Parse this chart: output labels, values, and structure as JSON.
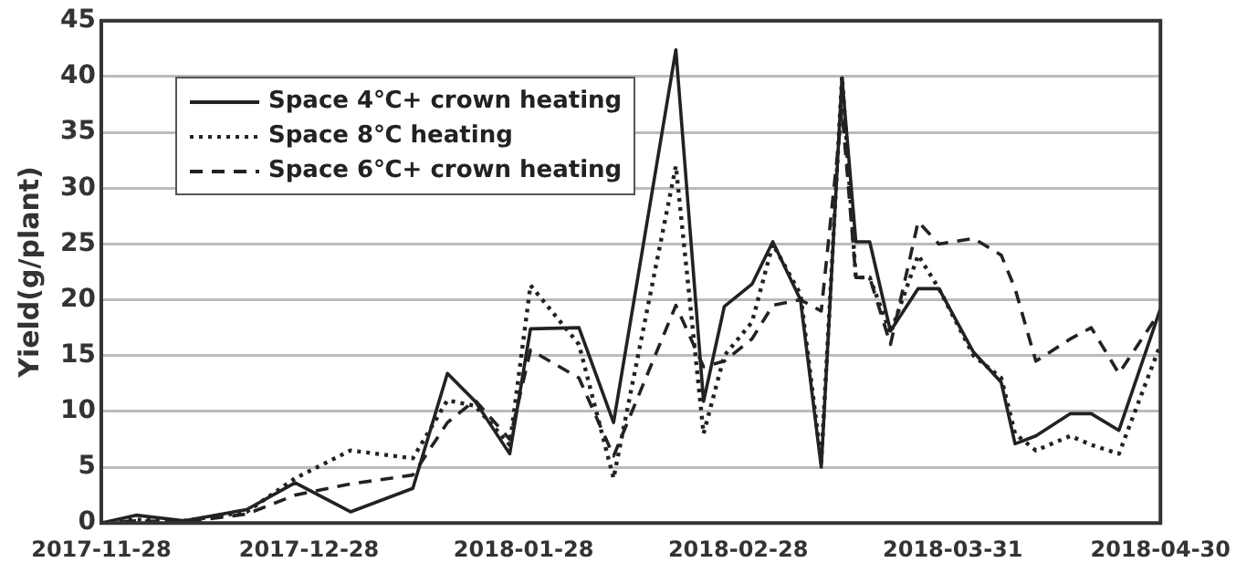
{
  "chart_data": {
    "type": "line",
    "ylabel": "Yield(g/plant)",
    "x": [
      "2017-11-28",
      "2017-12-03",
      "2017-12-10",
      "2017-12-19",
      "2017-12-26",
      "2018-01-03",
      "2018-01-12",
      "2018-01-17",
      "2018-01-21",
      "2018-01-26",
      "2018-01-29",
      "2018-02-05",
      "2018-02-10",
      "2018-02-19",
      "2018-02-23",
      "2018-02-26",
      "2018-03-02",
      "2018-03-05",
      "2018-03-09",
      "2018-03-12",
      "2018-03-15",
      "2018-03-17",
      "2018-03-19",
      "2018-03-22",
      "2018-03-26",
      "2018-03-29",
      "2018-04-03",
      "2018-04-07",
      "2018-04-09",
      "2018-04-12",
      "2018-04-17",
      "2018-04-20",
      "2018-04-24",
      "2018-04-30"
    ],
    "series": [
      {
        "name": "Space 4℃+ crown heating",
        "color": "#222222",
        "line_style": "solid",
        "values": [
          0,
          0.7,
          0.2,
          1.2,
          3.6,
          1,
          3.1,
          13.4,
          10.9,
          6.2,
          17.4,
          17.5,
          9,
          42.4,
          10.9,
          19.4,
          21.4,
          25.2,
          20,
          5,
          39.9,
          25.2,
          25.2,
          17.2,
          21,
          21,
          15.3,
          12.6,
          7.1,
          7.8,
          9.8,
          9.8,
          8.3,
          19.2
        ]
      },
      {
        "name": "Space 8℃ heating",
        "color": "#222222",
        "line_style": "dotted",
        "values": [
          0,
          0.3,
          0.2,
          1,
          4,
          6.5,
          5.8,
          11,
          10.5,
          7,
          21.3,
          16,
          4,
          32,
          8,
          15,
          18,
          25,
          20.5,
          5.5,
          40,
          22,
          22,
          17,
          24,
          21,
          15,
          13,
          8,
          6.5,
          7.8,
          7,
          6.2,
          16
        ]
      },
      {
        "name": "Space 6℃+ crown heating",
        "color": "#222222",
        "line_style": "dashed",
        "values": [
          0,
          0.2,
          0.1,
          0.8,
          2.5,
          3.5,
          4.3,
          9,
          11,
          7.5,
          15.5,
          13,
          6,
          19.5,
          14,
          14.5,
          16.5,
          19.5,
          20,
          19,
          37,
          22,
          22,
          16,
          27,
          25,
          25.5,
          24,
          21,
          14.5,
          16.5,
          17.5,
          13.4,
          19
        ]
      }
    ],
    "xlim": [
      "2017-11-28",
      "2018-04-30"
    ],
    "xticks": [
      "2017-11-28",
      "2017-12-28",
      "2018-01-28",
      "2018-02-28",
      "2018-03-31",
      "2018-04-30"
    ],
    "ylim": [
      0,
      45
    ],
    "yticks": [
      0,
      5,
      10,
      15,
      20,
      25,
      30,
      35,
      40,
      45
    ],
    "grid": "y",
    "legend": "top left",
    "marker": "none"
  }
}
